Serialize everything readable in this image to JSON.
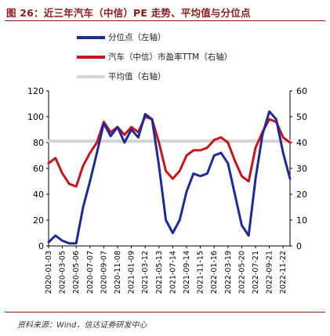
{
  "title": "图 26：近三年汽车（中信）PE 走势、平均值与分位点",
  "source": "资料来源：Wind，信达证券研发中心",
  "colors": {
    "pct": "#1f2a9a",
    "pe": "#c4161c",
    "avg": "#d4d4d4",
    "title": "#8b1a1a"
  },
  "chart_data": {
    "type": "line",
    "series": [
      {
        "name": "分位点（左轴）",
        "axis": "left",
        "color": "#1f2a9a",
        "x": [
          "2020-01-03",
          "2020-02-03",
          "2020-03-05",
          "2020-04-05",
          "2020-05-06",
          "2020-06-06",
          "2020-07-07",
          "2020-08-07",
          "2020-09-07",
          "2020-10-08",
          "2020-11-08",
          "2020-12-09",
          "2021-01-09",
          "2021-02-09",
          "2021-03-12",
          "2021-04-12",
          "2021-05-13",
          "2021-06-13",
          "2021-07-14",
          "2021-08-14",
          "2021-09-14",
          "2021-10-15",
          "2021-11-15",
          "2021-12-16",
          "2022-01-16",
          "2022-02-16",
          "2022-03-19",
          "2022-04-19",
          "2022-05-20",
          "2022-06-20",
          "2022-07-21",
          "2022-08-21",
          "2022-09-21",
          "2022-10-22",
          "2022-11-22",
          "2022-12-23"
        ],
        "values": [
          3,
          8,
          4,
          2,
          2,
          30,
          50,
          72,
          95,
          85,
          92,
          80,
          90,
          84,
          102,
          98,
          62,
          20,
          10,
          20,
          42,
          56,
          54,
          56,
          70,
          72,
          64,
          40,
          16,
          8,
          52,
          86,
          104,
          98,
          72,
          52
        ]
      },
      {
        "name": "汽车（中信）市盈率TTM（右轴）",
        "axis": "right",
        "color": "#c4161c",
        "x": [
          "2020-01-03",
          "2020-02-03",
          "2020-03-05",
          "2020-04-05",
          "2020-05-06",
          "2020-06-06",
          "2020-07-07",
          "2020-08-07",
          "2020-09-07",
          "2020-10-08",
          "2020-11-08",
          "2020-12-09",
          "2021-01-09",
          "2021-02-09",
          "2021-03-12",
          "2021-04-12",
          "2021-05-13",
          "2021-06-13",
          "2021-07-14",
          "2021-08-14",
          "2021-09-14",
          "2021-10-15",
          "2021-11-15",
          "2021-12-16",
          "2022-01-16",
          "2022-02-16",
          "2022-03-19",
          "2022-04-19",
          "2022-05-20",
          "2022-06-20",
          "2022-07-21",
          "2022-08-21",
          "2022-09-21",
          "2022-10-22",
          "2022-11-22",
          "2022-12-23"
        ],
        "values": [
          32,
          34,
          28,
          24,
          23,
          31,
          36,
          40,
          48,
          44,
          46,
          43,
          46,
          44,
          50,
          49,
          40,
          29,
          26,
          29,
          35,
          37,
          37,
          38,
          41,
          42,
          40,
          33,
          27,
          25,
          38,
          44,
          49,
          48,
          42,
          40
        ]
      },
      {
        "name": "平均值（右轴）",
        "axis": "right",
        "color": "#d4d4d4",
        "x": [
          "2020-01-03",
          "2022-12-23"
        ],
        "values": [
          40.5,
          40.5
        ]
      }
    ],
    "x_tick_labels": [
      "2020-01-03",
      "2020-03-05",
      "2020-05-06",
      "2020-07-07",
      "2020-09-07",
      "2020-11-08",
      "2021-01-09",
      "2021-03-12",
      "2021-05-13",
      "2021-07-14",
      "2021-09-14",
      "2021-11-15",
      "2022-01-16",
      "2022-03-19",
      "2022-05-20",
      "2022-07-21",
      "2022-09-21",
      "2022-11-22"
    ],
    "left_axis": {
      "ticks": [
        0,
        20,
        40,
        60,
        80,
        100,
        120
      ],
      "ylim": [
        0,
        120
      ]
    },
    "right_axis": {
      "ticks": [
        0,
        10,
        20,
        30,
        40,
        50,
        60
      ],
      "ylim": [
        0,
        60
      ]
    },
    "legend_position": "top-left",
    "grid": false
  }
}
